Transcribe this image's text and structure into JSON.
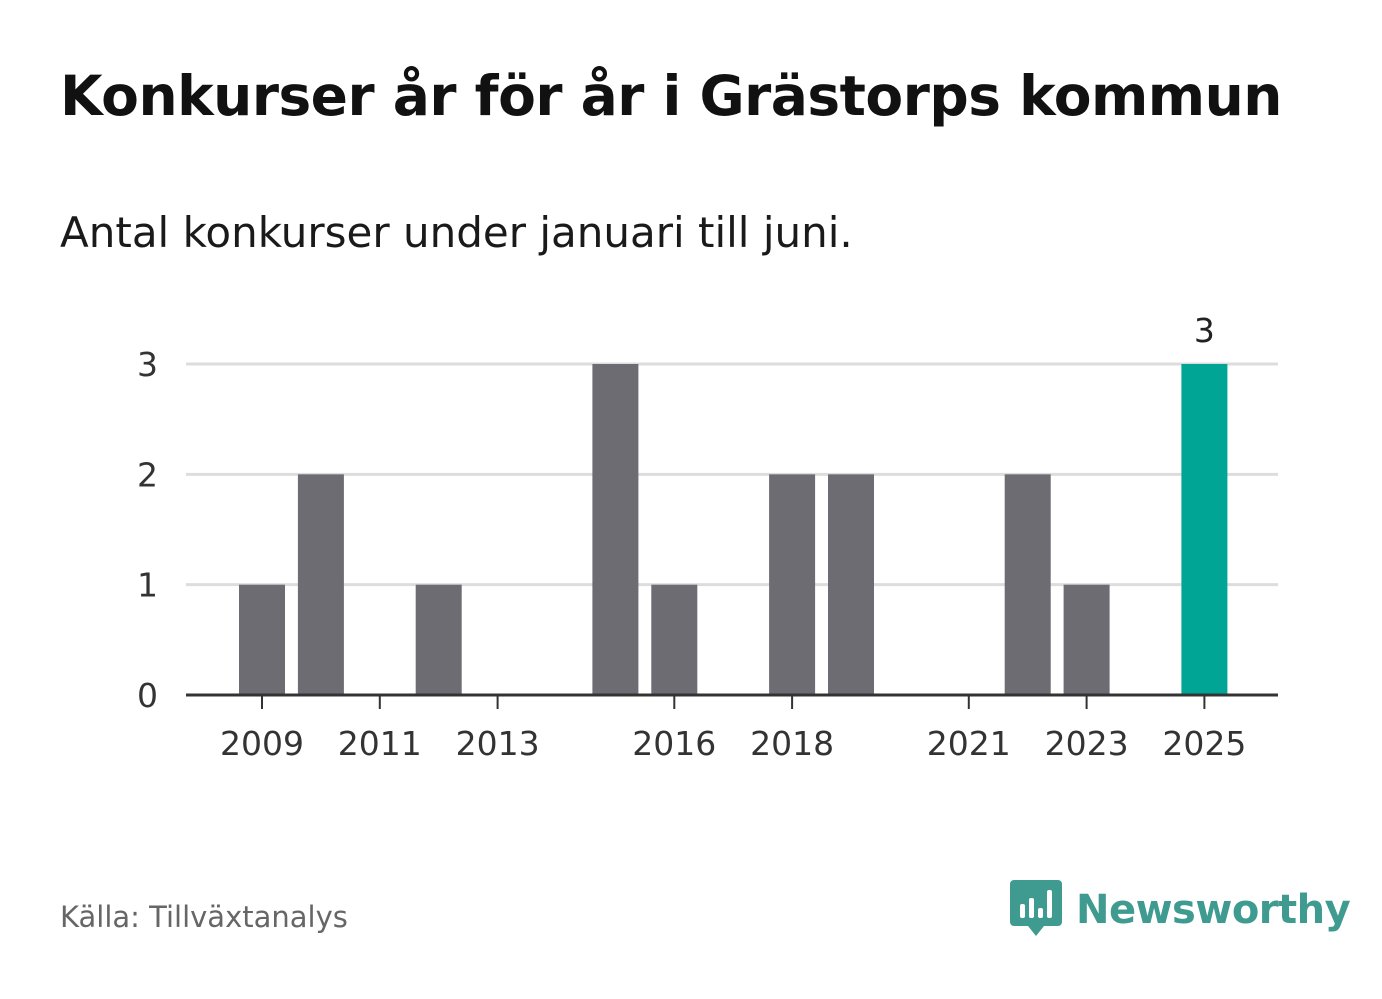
{
  "header": {
    "title": "Konkurser år för år i Grästorps kommun",
    "subtitle": "Antal konkurser under januari till juni."
  },
  "footer": {
    "source": "Källa: Tillväxtanalys",
    "brand": "Newsworthy",
    "brand_icon": "newsworthy-logo-icon"
  },
  "colors": {
    "bar_default": "#6d6c72",
    "bar_highlight": "#00a595",
    "grid": "#dddddd",
    "axis": "#333333",
    "tick_text": "#333333",
    "brand": "#3f9a90"
  },
  "chart_data": {
    "type": "bar",
    "categories": [
      "2009",
      "2010",
      "2011",
      "2012",
      "2013",
      "2014",
      "2015",
      "2016",
      "2017",
      "2018",
      "2019",
      "2020",
      "2021",
      "2022",
      "2023",
      "2024",
      "2025"
    ],
    "values": [
      1,
      2,
      0,
      1,
      0,
      0,
      3,
      1,
      0,
      2,
      2,
      0,
      0,
      2,
      1,
      0,
      3
    ],
    "x_tick_labels": [
      "2009",
      "2011",
      "2013",
      "2016",
      "2018",
      "2021",
      "2023",
      "2025"
    ],
    "y_ticks": [
      0,
      1,
      2,
      3
    ],
    "ylim": [
      0,
      3
    ],
    "highlight_category": "2025",
    "data_labels": [
      {
        "category": "2025",
        "text": "3"
      }
    ],
    "grid": true,
    "title": "Konkurser år för år i Grästorps kommun",
    "subtitle": "Antal konkurser under januari till juni.",
    "xlabel": "",
    "ylabel": ""
  }
}
